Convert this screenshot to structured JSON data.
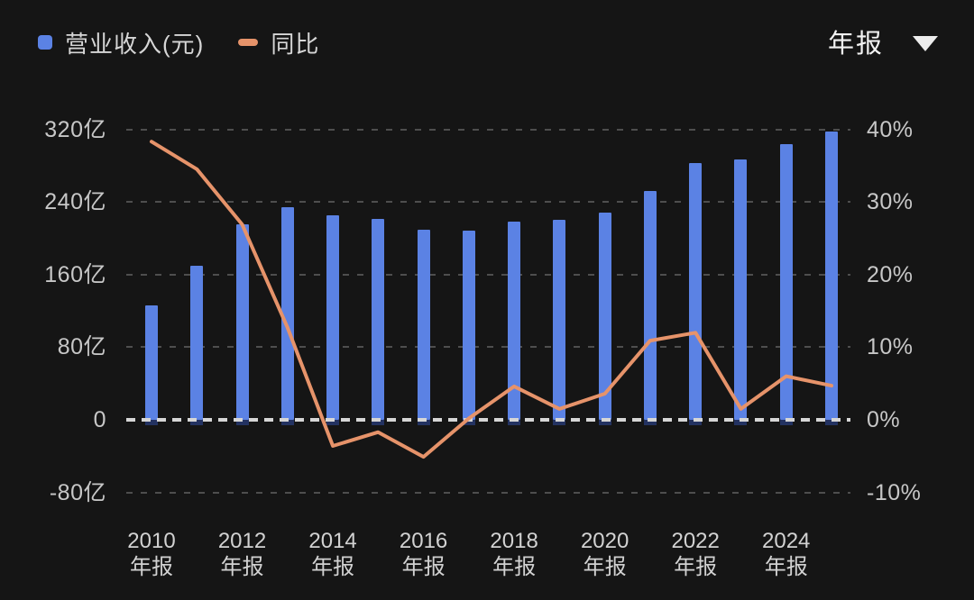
{
  "legend": {
    "revenue_label": "营业收入(元)",
    "yoy_label": "同比"
  },
  "period_selector": {
    "label": "年报",
    "caret_icon": "triangle-down"
  },
  "colors": {
    "background": "#151515",
    "bar": "#5b82e4",
    "bar_stub": "#233261",
    "line": "#e6936a",
    "grid": "#4e4e4e",
    "zero_line": "#d6d6d6",
    "axis_text": "#c7c7c7",
    "x_axis_text": "#d2d2d2",
    "legend_text": "#d6d6d6"
  },
  "chart_data": {
    "type": "bar",
    "subtype": "bar+line dual axis",
    "categories": [
      "2010",
      "2011",
      "2012",
      "2013",
      "2014",
      "2015",
      "2016",
      "2017",
      "2018",
      "2019",
      "2020",
      "2021",
      "2022",
      "2023",
      "2024",
      "2025"
    ],
    "series": [
      {
        "name": "营业收入(元)",
        "type": "bar",
        "unit": "亿",
        "axis": "left",
        "values": [
          126,
          170,
          215,
          234,
          225,
          221,
          209,
          208,
          218,
          220,
          228,
          252,
          283,
          287,
          304,
          318
        ]
      },
      {
        "name": "同比",
        "type": "line",
        "unit": "%",
        "axis": "right",
        "values": [
          38.3,
          34.5,
          26.9,
          12.7,
          -3.6,
          -1.7,
          -5.1,
          0.2,
          4.6,
          1.5,
          3.6,
          10.9,
          12.0,
          1.5,
          6.0,
          4.7
        ]
      }
    ],
    "left_axis": {
      "tick_labels": [
        "320亿",
        "240亿",
        "160亿",
        "80亿",
        "0",
        "-80亿"
      ],
      "tick_values": [
        320,
        240,
        160,
        80,
        0,
        -80
      ],
      "range": [
        -80,
        320
      ]
    },
    "right_axis": {
      "tick_labels": [
        "40%",
        "30%",
        "20%",
        "10%",
        "0%",
        "-10%"
      ],
      "tick_values": [
        40,
        30,
        20,
        10,
        0,
        -10
      ],
      "range": [
        -10,
        40
      ]
    },
    "x_axis": {
      "tick_years": [
        "2010",
        "2012",
        "2014",
        "2016",
        "2018",
        "2020",
        "2022",
        "2024"
      ],
      "tick_sublabel": "年报",
      "ticks_every_n_bars": 2
    },
    "grid": "horizontal dashed",
    "legend_position": "top-left"
  }
}
